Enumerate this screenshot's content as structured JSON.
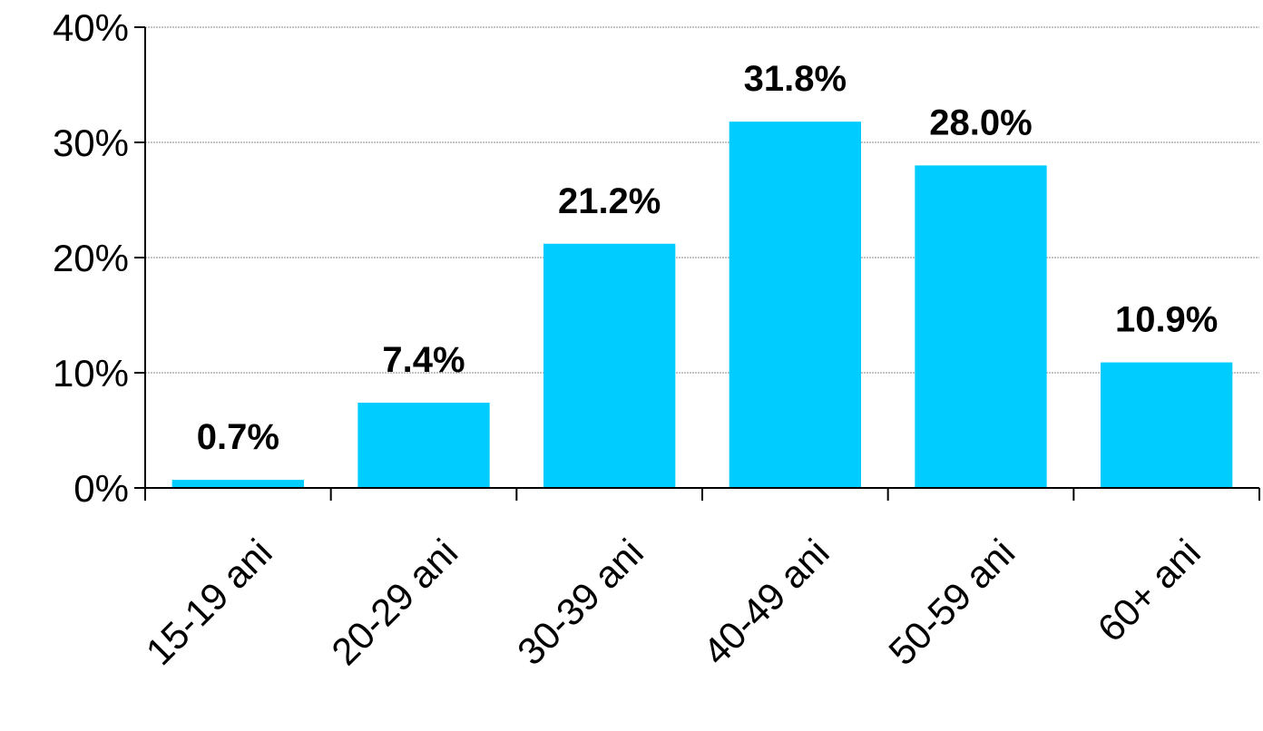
{
  "chart_data": {
    "type": "bar",
    "title": "",
    "xlabel": "",
    "ylabel": "",
    "categories": [
      "15-19 ani",
      "20-29 ani",
      "30-39 ani",
      "40-49 ani",
      "50-59 ani",
      "60+ ani"
    ],
    "values": [
      0.7,
      7.4,
      21.2,
      31.8,
      28.0,
      10.9
    ],
    "data_labels": [
      "0.7%",
      "7.4%",
      "21.2%",
      "31.8%",
      "28.0%",
      "10.9%"
    ],
    "ylim": [
      0,
      40
    ],
    "yticks": [
      0,
      10,
      20,
      30,
      40
    ],
    "ytick_labels": [
      "0%",
      "10%",
      "20%",
      "30%",
      "40%"
    ],
    "grid": true,
    "legend": "none",
    "colors": {
      "bar": "#00CCFF",
      "grid": "#888888",
      "axis": "#000000"
    }
  }
}
